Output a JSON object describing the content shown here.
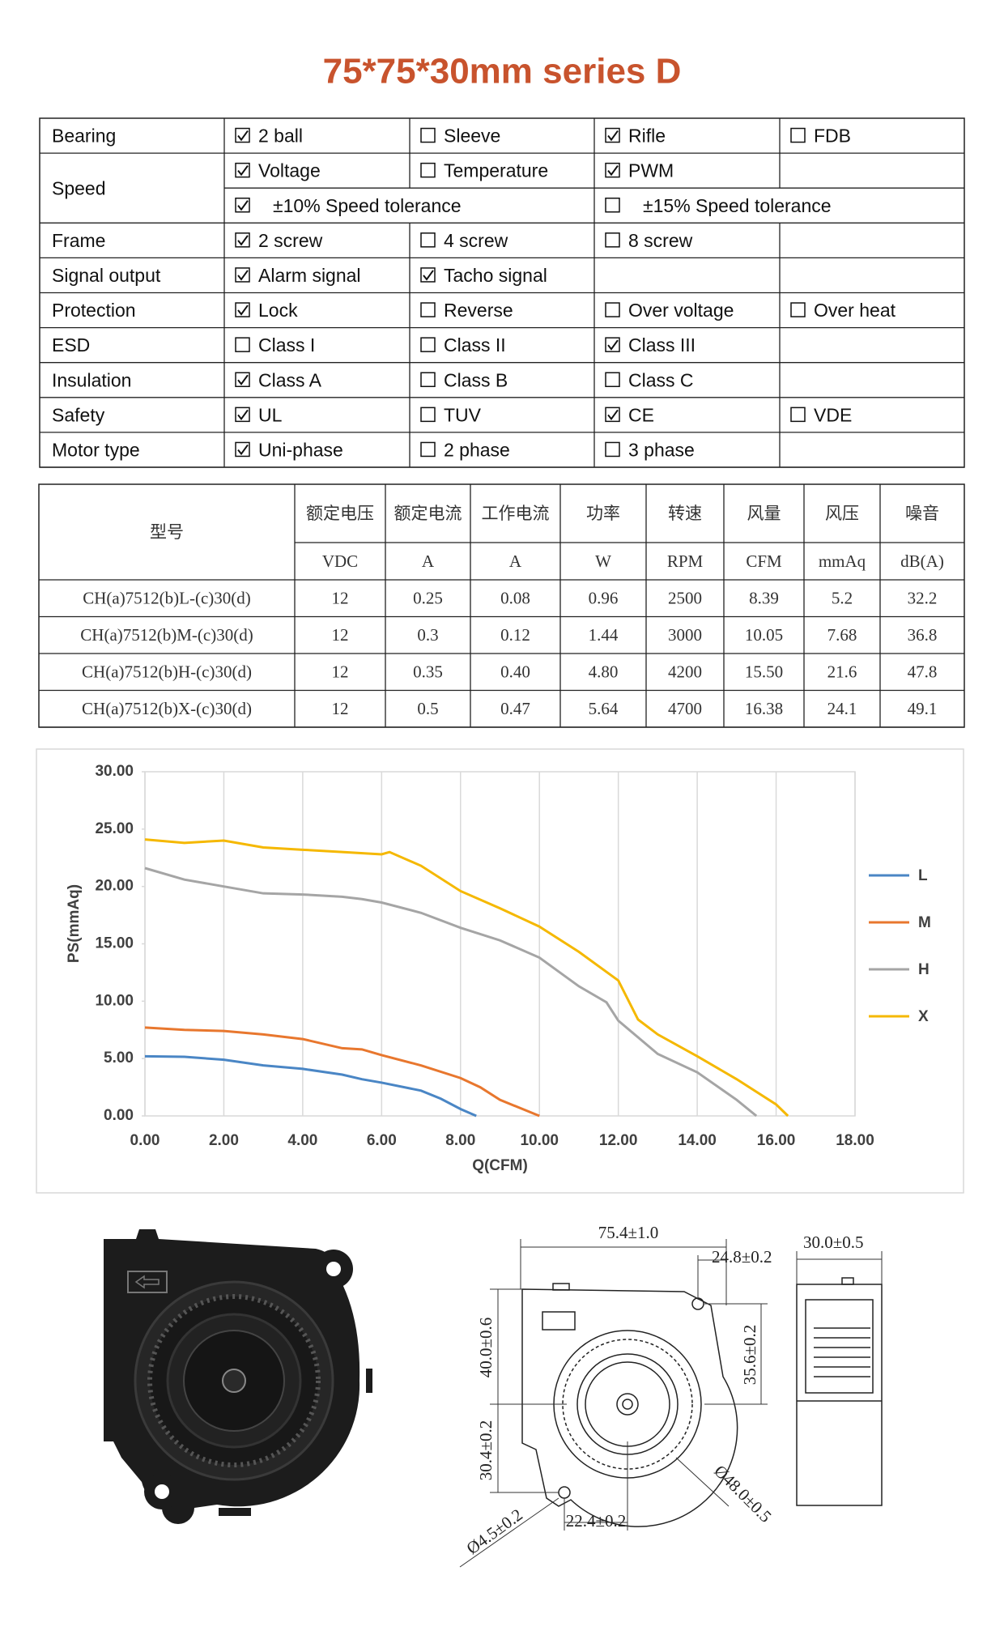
{
  "title": "75*75*30mm series D",
  "spec_table": {
    "rows": [
      {
        "label": "Bearing",
        "lines": [
          [
            {
              "checked": true,
              "text": "2 ball"
            },
            {
              "checked": false,
              "text": "Sleeve"
            },
            {
              "checked": true,
              "text": "Rifle"
            },
            {
              "checked": false,
              "text": "FDB"
            }
          ]
        ]
      },
      {
        "label": "Speed",
        "lines": [
          [
            {
              "checked": true,
              "text": "Voltage"
            },
            {
              "checked": false,
              "text": "Temperature"
            },
            {
              "checked": true,
              "text": "PWM"
            }
          ],
          [
            {
              "checked": true,
              "text": "±10% Speed tolerance"
            },
            {
              "checked": false,
              "text": "±15% Speed tolerance"
            }
          ]
        ]
      },
      {
        "label": "Frame",
        "lines": [
          [
            {
              "checked": true,
              "text": "2 screw"
            },
            {
              "checked": false,
              "text": "4 screw"
            },
            {
              "checked": false,
              "text": "8 screw"
            }
          ]
        ]
      },
      {
        "label": "Signal output",
        "lines": [
          [
            {
              "checked": true,
              "text": "Alarm signal"
            },
            {
              "checked": true,
              "text": "Tacho signal"
            }
          ]
        ]
      },
      {
        "label": "Protection",
        "lines": [
          [
            {
              "checked": true,
              "text": "Lock"
            },
            {
              "checked": false,
              "text": "Reverse"
            },
            {
              "checked": false,
              "text": "Over voltage"
            },
            {
              "checked": false,
              "text": "Over heat"
            }
          ]
        ]
      },
      {
        "label": "ESD",
        "lines": [
          [
            {
              "checked": false,
              "text": "Class I"
            },
            {
              "checked": false,
              "text": "Class II"
            },
            {
              "checked": true,
              "text": "Class III"
            }
          ]
        ]
      },
      {
        "label": "Insulation",
        "lines": [
          [
            {
              "checked": true,
              "text": "Class A"
            },
            {
              "checked": false,
              "text": "Class B"
            },
            {
              "checked": false,
              "text": "Class C"
            }
          ]
        ]
      },
      {
        "label": "Safety",
        "lines": [
          [
            {
              "checked": true,
              "text": "UL"
            },
            {
              "checked": false,
              "text": "TUV"
            },
            {
              "checked": true,
              "text": "CE"
            },
            {
              "checked": false,
              "text": "VDE"
            }
          ]
        ]
      },
      {
        "label": "Motor type",
        "lines": [
          [
            {
              "checked": true,
              "text": "Uni-phase"
            },
            {
              "checked": false,
              "text": "2 phase"
            },
            {
              "checked": false,
              "text": "3 phase"
            }
          ]
        ]
      }
    ]
  },
  "perf_table": {
    "headers": [
      "型号",
      "额定电压",
      "额定电流",
      "工作电流",
      "功率",
      "转速",
      "风量",
      "风压",
      "噪音"
    ],
    "units": [
      "VDC",
      "A",
      "A",
      "W",
      "RPM",
      "CFM",
      "mmAq",
      "dB(A)"
    ],
    "rows": [
      [
        "CH(a)7512(b)L-(c)30(d)",
        "12",
        "0.25",
        "0.08",
        "0.96",
        "2500",
        "8.39",
        "5.2",
        "32.2"
      ],
      [
        "CH(a)7512(b)M-(c)30(d)",
        "12",
        "0.3",
        "0.12",
        "1.44",
        "3000",
        "10.05",
        "7.68",
        "36.8"
      ],
      [
        "CH(a)7512(b)H-(c)30(d)",
        "12",
        "0.35",
        "0.40",
        "4.80",
        "4200",
        "15.50",
        "21.6",
        "47.8"
      ],
      [
        "CH(a)7512(b)X-(c)30(d)",
        "12",
        "0.5",
        "0.47",
        "5.64",
        "4700",
        "16.38",
        "24.1",
        "49.1"
      ]
    ]
  },
  "chart_data": {
    "type": "line",
    "x_label": "Q(CFM)",
    "y_label": "PS(mmAq)",
    "xlim": [
      0,
      18
    ],
    "ylim": [
      0,
      30
    ],
    "grid": true,
    "xticks": [
      {
        "value": 0,
        "label": "0.00"
      },
      {
        "value": 2,
        "label": "2.00"
      },
      {
        "value": 4,
        "label": "4.00"
      },
      {
        "value": 6,
        "label": "6.00"
      },
      {
        "value": 8,
        "label": "8.00"
      },
      {
        "value": 10,
        "label": "10.00"
      },
      {
        "value": 12,
        "label": "12.00"
      },
      {
        "value": 14,
        "label": "14.00"
      },
      {
        "value": 16,
        "label": "16.00"
      },
      {
        "value": 18,
        "label": "18.00"
      }
    ],
    "yticks": [
      {
        "value": 0,
        "label": "0.00"
      },
      {
        "value": 5,
        "label": "5.00"
      },
      {
        "value": 10,
        "label": "10.00"
      },
      {
        "value": 15,
        "label": "15.00"
      },
      {
        "value": 20,
        "label": "20.00"
      },
      {
        "value": 25,
        "label": "25.00"
      },
      {
        "value": 30,
        "label": "30.00"
      }
    ],
    "series": [
      {
        "name": "L",
        "color": "#4a86c5",
        "x": [
          0,
          1,
          2,
          3,
          4,
          5,
          5.5,
          6,
          7,
          7.5,
          8,
          8.4
        ],
        "values": [
          5.2,
          5.15,
          4.9,
          4.4,
          4.1,
          3.6,
          3.2,
          2.9,
          2.2,
          1.5,
          0.6,
          0
        ]
      },
      {
        "name": "M",
        "color": "#e8772e",
        "x": [
          0,
          1,
          2,
          3,
          4,
          5,
          5.5,
          6,
          7,
          8,
          8.5,
          9,
          10
        ],
        "values": [
          7.7,
          7.5,
          7.4,
          7.1,
          6.7,
          5.9,
          5.8,
          5.3,
          4.4,
          3.3,
          2.5,
          1.4,
          0
        ]
      },
      {
        "name": "H",
        "color": "#a5a5a5",
        "x": [
          0,
          1,
          2,
          3,
          4,
          5,
          5.5,
          6,
          7,
          8,
          9,
          10,
          11,
          11.7,
          12,
          13,
          14,
          15,
          15.5
        ],
        "values": [
          21.6,
          20.6,
          20.0,
          19.4,
          19.3,
          19.1,
          18.9,
          18.6,
          17.7,
          16.4,
          15.3,
          13.8,
          11.3,
          9.9,
          8.3,
          5.4,
          3.8,
          1.4,
          0
        ]
      },
      {
        "name": "X",
        "color": "#f5b800",
        "x": [
          0,
          1,
          2,
          3,
          4,
          5,
          6,
          6.2,
          7,
          8,
          9,
          10,
          11,
          12,
          12.5,
          13,
          14,
          15,
          16,
          16.3
        ],
        "values": [
          24.1,
          23.8,
          24.0,
          23.4,
          23.2,
          23.0,
          22.8,
          23.0,
          21.8,
          19.6,
          18.1,
          16.5,
          14.3,
          11.8,
          8.4,
          7.1,
          5.2,
          3.2,
          1.0,
          0
        ]
      }
    ]
  },
  "drawing": {
    "labels": [
      "75.4±1.0",
      "24.8±0.2",
      "30.0±0.5",
      "40.0±0.6",
      "35.6±0.2",
      "30.4±0.2",
      "22.4±0.2",
      "Ø4.5±0.2",
      "Ø48.0±0.5"
    ]
  }
}
